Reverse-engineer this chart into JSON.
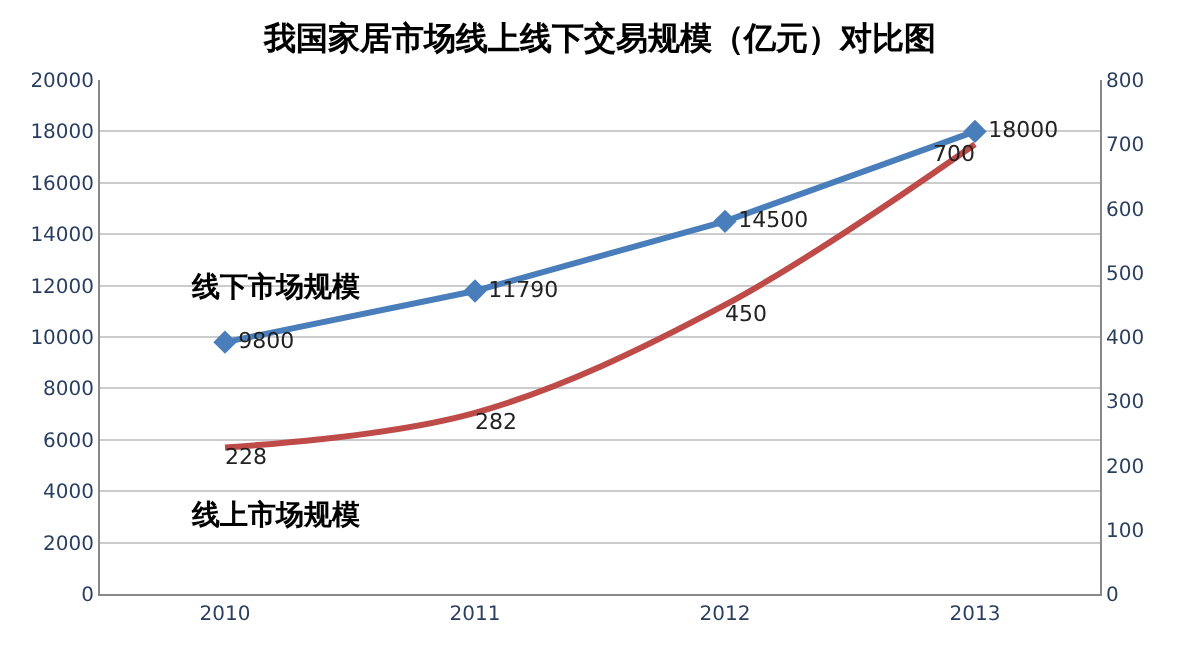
{
  "chart_data": {
    "type": "line",
    "title": "我国家居市场线上线下交易规模（亿元）对比图",
    "categories": [
      "2010",
      "2011",
      "2012",
      "2013"
    ],
    "series": [
      {
        "name": "线下市场规模",
        "color": "#4a7ebb",
        "values": [
          9800,
          11790,
          14500,
          18000
        ],
        "marker": "diamond"
      },
      {
        "name": "线上市场规模",
        "color": "#be4b48",
        "values": [
          228,
          282,
          450,
          700
        ],
        "axis": "y2",
        "marker": "none"
      }
    ],
    "ylim": [
      0,
      20000
    ],
    "yticks": [
      0,
      2000,
      4000,
      6000,
      8000,
      10000,
      12000,
      14000,
      16000,
      18000,
      20000
    ],
    "y2lim": [
      0,
      800
    ],
    "y2ticks": [
      0,
      100,
      200,
      300,
      400,
      500,
      600,
      700,
      800
    ],
    "grid": "y",
    "legend": false,
    "data_labels": true,
    "line_style": "solid"
  }
}
